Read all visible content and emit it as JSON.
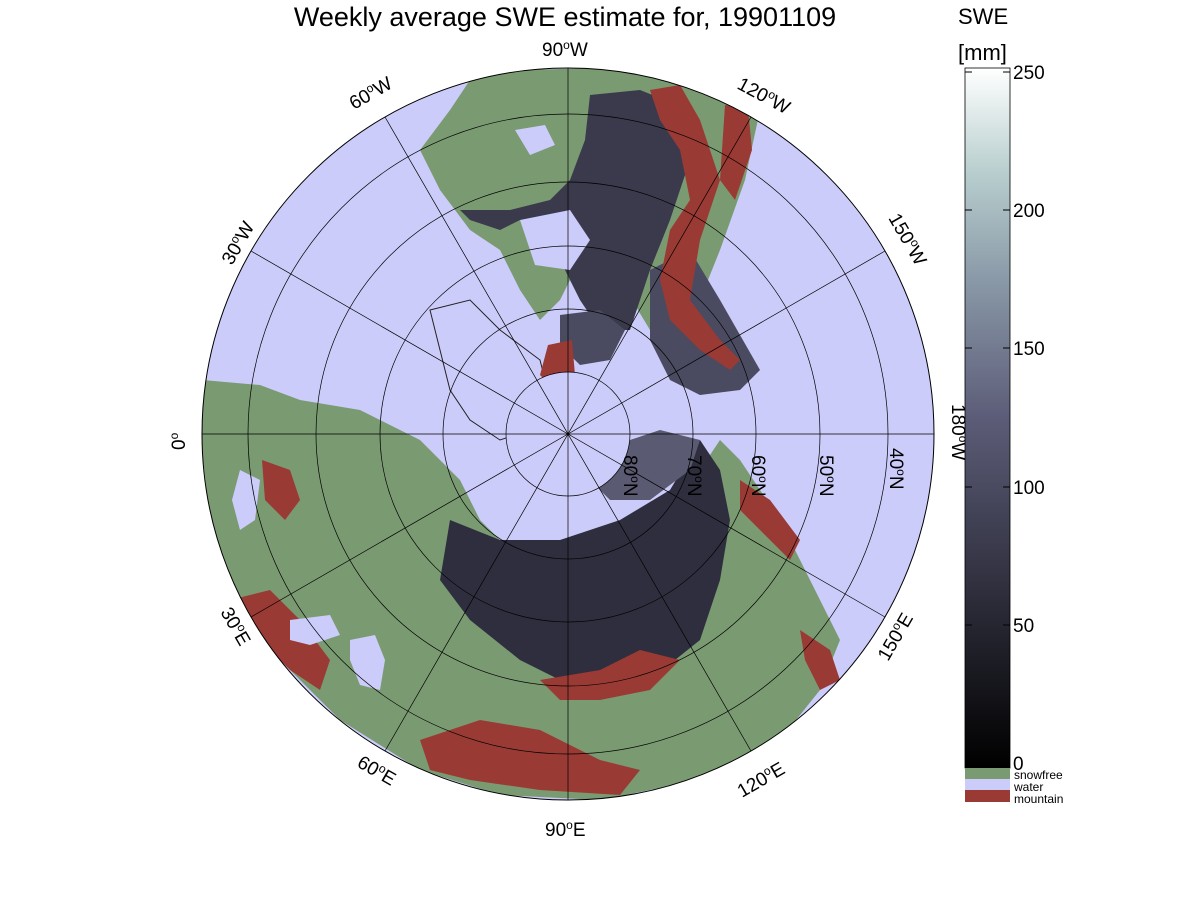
{
  "title": "Weekly average SWE estimate for, 19901109",
  "map": {
    "projection": "north polar stereographic",
    "lon_labels": [
      {
        "lon": "90",
        "hemi": "W"
      },
      {
        "lon": "120",
        "hemi": "W"
      },
      {
        "lon": "60",
        "hemi": "W"
      },
      {
        "lon": "150",
        "hemi": "W"
      },
      {
        "lon": "30",
        "hemi": "W"
      },
      {
        "lon": "180",
        "hemi": "W"
      },
      {
        "lon": "0",
        "hemi": ""
      },
      {
        "lon": "150",
        "hemi": "E"
      },
      {
        "lon": "30",
        "hemi": "E"
      },
      {
        "lon": "120",
        "hemi": "E"
      },
      {
        "lon": "60",
        "hemi": "E"
      },
      {
        "lon": "90",
        "hemi": "E"
      }
    ],
    "lat_labels": [
      "80",
      "70",
      "60",
      "50",
      "40"
    ],
    "lat_hemi": "N"
  },
  "colorbar": {
    "label_line1": "SWE",
    "label_line2": "[mm]",
    "ticks": [
      "250",
      "200",
      "150",
      "100",
      "50",
      "0"
    ],
    "range": [
      0,
      250
    ],
    "categories": [
      {
        "label": "snowfree",
        "color": "#7a9a72"
      },
      {
        "label": "water",
        "color": "#ccccfa"
      },
      {
        "label": "mountain",
        "color": "#9a3a34"
      }
    ]
  },
  "colors": {
    "water": "#ccccfa",
    "snowfree": "#7a9a72",
    "mountain": "#9a3a34",
    "snow_low": "#2a2a38",
    "snow_mid": "#4a4a60",
    "coastline": "#222222"
  }
}
